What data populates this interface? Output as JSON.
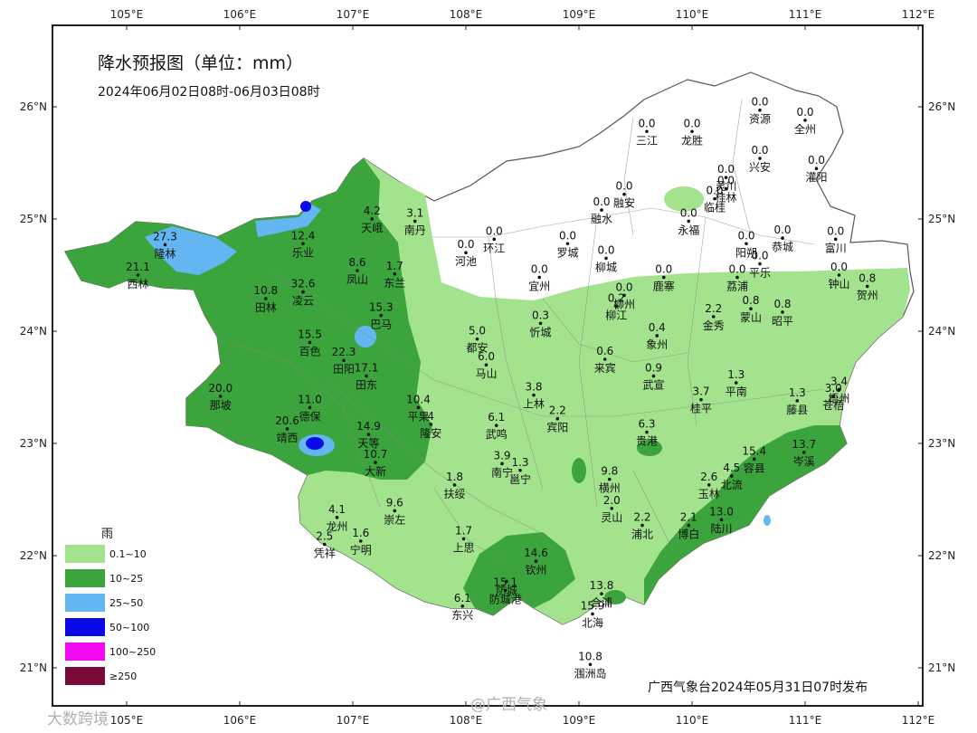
{
  "map": {
    "title": "降水预报图（单位：mm）",
    "subtitle": "2024年06月02日08时-06月03日08时",
    "footer": "广西气象台2024年05月31日07时发布",
    "watermarks": [
      "大数跨境",
      "@广西气象"
    ],
    "lon_ticks": [
      "105°E",
      "106°E",
      "107°E",
      "108°E",
      "109°E",
      "110°E",
      "111°E",
      "112°E"
    ],
    "lat_ticks": [
      "26°N",
      "25°N",
      "24°N",
      "23°N",
      "22°N",
      "21°N"
    ],
    "legend": {
      "title": "雨",
      "items": [
        {
          "label": "0.1~10",
          "color": "#a3e38e"
        },
        {
          "label": "10~25",
          "color": "#3ca43c"
        },
        {
          "label": "25~50",
          "color": "#63b6f2"
        },
        {
          "label": "50~100",
          "color": "#0a0ae6"
        },
        {
          "label": "100~250",
          "color": "#f30cf3"
        },
        {
          "label": "≥250",
          "color": "#7a0a3a"
        }
      ]
    },
    "stations": [
      {
        "name": "资源",
        "value": "0.0",
        "lon": 110.6,
        "lat": 25.97
      },
      {
        "name": "全州",
        "value": "0.0",
        "lon": 111.0,
        "lat": 25.88
      },
      {
        "name": "三江",
        "value": "0.0",
        "lon": 109.6,
        "lat": 25.78
      },
      {
        "name": "龙胜",
        "value": "0.0",
        "lon": 110.0,
        "lat": 25.78
      },
      {
        "name": "兴安",
        "value": "0.0",
        "lon": 110.6,
        "lat": 25.54
      },
      {
        "name": "灌阳",
        "value": "0.0",
        "lon": 111.1,
        "lat": 25.45
      },
      {
        "name": "灵川",
        "value": "0.0",
        "lon": 110.3,
        "lat": 25.37
      },
      {
        "name": "桂林",
        "value": "0.0",
        "lon": 110.3,
        "lat": 25.27
      },
      {
        "name": "临桂",
        "value": "0.0",
        "lon": 110.2,
        "lat": 25.18
      },
      {
        "name": "融安",
        "value": "0.0",
        "lon": 109.4,
        "lat": 25.22
      },
      {
        "name": "融水",
        "value": "0.0",
        "lon": 109.2,
        "lat": 25.08
      },
      {
        "name": "永福",
        "value": "0.0",
        "lon": 109.97,
        "lat": 24.98
      },
      {
        "name": "环江",
        "value": "0.0",
        "lon": 108.25,
        "lat": 24.82
      },
      {
        "name": "河池",
        "value": "0.0",
        "lon": 108.0,
        "lat": 24.7
      },
      {
        "name": "罗城",
        "value": "0.0",
        "lon": 108.9,
        "lat": 24.78
      },
      {
        "name": "柳城",
        "value": "0.0",
        "lon": 109.24,
        "lat": 24.65
      },
      {
        "name": "阳朔",
        "value": "0.0",
        "lon": 110.48,
        "lat": 24.78
      },
      {
        "name": "恭城",
        "value": "0.0",
        "lon": 110.8,
        "lat": 24.83
      },
      {
        "name": "富川",
        "value": "0.0",
        "lon": 111.27,
        "lat": 24.82
      },
      {
        "name": "宜州",
        "value": "0.0",
        "lon": 108.65,
        "lat": 24.48
      },
      {
        "name": "鹿寨",
        "value": "0.0",
        "lon": 109.75,
        "lat": 24.48
      },
      {
        "name": "平乐",
        "value": "0.0",
        "lon": 110.6,
        "lat": 24.6
      },
      {
        "name": "钟山",
        "value": "0.0",
        "lon": 111.3,
        "lat": 24.5
      },
      {
        "name": "荔浦",
        "value": "0.0",
        "lon": 110.4,
        "lat": 24.48
      },
      {
        "name": "柳州",
        "value": "0.0",
        "lon": 109.4,
        "lat": 24.32
      },
      {
        "name": "柳江",
        "value": "0.2",
        "lon": 109.33,
        "lat": 24.22
      },
      {
        "name": "贺州",
        "value": "0.8",
        "lon": 111.55,
        "lat": 24.4
      },
      {
        "name": "蒙山",
        "value": "0.8",
        "lon": 110.52,
        "lat": 24.2
      },
      {
        "name": "昭平",
        "value": "0.8",
        "lon": 110.8,
        "lat": 24.17
      },
      {
        "name": "金秀",
        "value": "2.2",
        "lon": 110.19,
        "lat": 24.13
      },
      {
        "name": "忻城",
        "value": "0.3",
        "lon": 108.66,
        "lat": 24.07
      },
      {
        "name": "象州",
        "value": "0.4",
        "lon": 109.69,
        "lat": 23.96
      },
      {
        "name": "都安",
        "value": "5.0",
        "lon": 108.1,
        "lat": 23.93
      },
      {
        "name": "马山",
        "value": "6.0",
        "lon": 108.18,
        "lat": 23.7
      },
      {
        "name": "来宾",
        "value": "0.6",
        "lon": 109.23,
        "lat": 23.75
      },
      {
        "name": "武宣",
        "value": "0.9",
        "lon": 109.66,
        "lat": 23.6
      },
      {
        "name": "平南",
        "value": "1.3",
        "lon": 110.39,
        "lat": 23.54
      },
      {
        "name": "桂平",
        "value": "3.7",
        "lon": 110.08,
        "lat": 23.39
      },
      {
        "name": "藤县",
        "value": "1.3",
        "lon": 110.93,
        "lat": 23.38
      },
      {
        "name": "梧州",
        "value": "3.4",
        "lon": 111.3,
        "lat": 23.48
      },
      {
        "name": "苍梧",
        "value": "3.0",
        "lon": 111.25,
        "lat": 23.42
      },
      {
        "name": "上林",
        "value": "3.8",
        "lon": 108.6,
        "lat": 23.43
      },
      {
        "name": "宾阳",
        "value": "2.2",
        "lon": 108.81,
        "lat": 23.22
      },
      {
        "name": "武鸣",
        "value": "6.1",
        "lon": 108.27,
        "lat": 23.16
      },
      {
        "name": "贵港",
        "value": "6.3",
        "lon": 109.6,
        "lat": 23.1
      },
      {
        "name": "岑溪",
        "value": "13.7",
        "lon": 110.99,
        "lat": 22.92
      },
      {
        "name": "容县",
        "value": "15.4",
        "lon": 110.55,
        "lat": 22.86
      },
      {
        "name": "北流",
        "value": "4.5",
        "lon": 110.35,
        "lat": 22.71
      },
      {
        "name": "玉林",
        "value": "2.6",
        "lon": 110.15,
        "lat": 22.63
      },
      {
        "name": "横州",
        "value": "9.8",
        "lon": 109.27,
        "lat": 22.68
      },
      {
        "name": "邕宁",
        "value": "1.3",
        "lon": 108.48,
        "lat": 22.76
      },
      {
        "name": "南宁",
        "value": "3.9",
        "lon": 108.32,
        "lat": 22.82
      },
      {
        "name": "灵山",
        "value": "2.0",
        "lon": 109.29,
        "lat": 22.42
      },
      {
        "name": "浦北",
        "value": "2.2",
        "lon": 109.56,
        "lat": 22.27
      },
      {
        "name": "博白",
        "value": "2.1",
        "lon": 109.97,
        "lat": 22.27
      },
      {
        "name": "陆川",
        "value": "13.0",
        "lon": 110.26,
        "lat": 22.32
      },
      {
        "name": "扶绥",
        "value": "1.8",
        "lon": 107.9,
        "lat": 22.63
      },
      {
        "name": "上思",
        "value": "1.7",
        "lon": 107.98,
        "lat": 22.15
      },
      {
        "name": "钦州",
        "value": "14.6",
        "lon": 108.62,
        "lat": 21.95
      },
      {
        "name": "防城港",
        "value": "15.1",
        "lon": 108.35,
        "lat": 21.69
      },
      {
        "name": "防城",
        "value": "",
        "lon": 108.36,
        "lat": 21.77
      },
      {
        "name": "东兴",
        "value": "6.1",
        "lon": 107.97,
        "lat": 21.55
      },
      {
        "name": "合浦",
        "value": "13.8",
        "lon": 109.2,
        "lat": 21.66
      },
      {
        "name": "北海",
        "value": "15.9",
        "lon": 109.12,
        "lat": 21.48
      },
      {
        "name": "涠洲岛",
        "value": "10.8",
        "lon": 109.1,
        "lat": 21.03
      },
      {
        "name": "隆林",
        "value": "27.3",
        "lon": 105.34,
        "lat": 24.77
      },
      {
        "name": "西林",
        "value": "21.1",
        "lon": 105.1,
        "lat": 24.5
      },
      {
        "name": "乐业",
        "value": "12.4",
        "lon": 106.56,
        "lat": 24.78
      },
      {
        "name": "天峨",
        "value": "4.2",
        "lon": 107.17,
        "lat": 25.0
      },
      {
        "name": "南丹",
        "value": "3.1",
        "lon": 107.55,
        "lat": 24.98
      },
      {
        "name": "凤山",
        "value": "8.6",
        "lon": 107.04,
        "lat": 24.54
      },
      {
        "name": "东兰",
        "value": "1.7",
        "lon": 107.37,
        "lat": 24.51
      },
      {
        "name": "凌云",
        "value": "32.6",
        "lon": 106.56,
        "lat": 24.35
      },
      {
        "name": "田林",
        "value": "10.8",
        "lon": 106.23,
        "lat": 24.29
      },
      {
        "name": "巴马",
        "value": "15.3",
        "lon": 107.25,
        "lat": 24.14
      },
      {
        "name": "百色",
        "value": "15.5",
        "lon": 106.62,
        "lat": 23.9
      },
      {
        "name": "田阳",
        "value": "22.3",
        "lon": 106.92,
        "lat": 23.74
      },
      {
        "name": "田东",
        "value": "17.1",
        "lon": 107.12,
        "lat": 23.6
      },
      {
        "name": "那坡",
        "value": "20.0",
        "lon": 105.83,
        "lat": 23.42
      },
      {
        "name": "德保",
        "value": "11.0",
        "lon": 106.62,
        "lat": 23.32
      },
      {
        "name": "平果",
        "value": "10.4",
        "lon": 107.58,
        "lat": 23.32
      },
      {
        "name": "隆安",
        "value": "4",
        "lon": 107.69,
        "lat": 23.17
      },
      {
        "name": "靖西",
        "value": "20.6",
        "lon": 106.42,
        "lat": 23.13
      },
      {
        "name": "天等",
        "value": "14.9",
        "lon": 107.14,
        "lat": 23.08
      },
      {
        "name": "大新",
        "value": "10.7",
        "lon": 107.2,
        "lat": 22.83
      },
      {
        "name": "崇左",
        "value": "9.6",
        "lon": 107.37,
        "lat": 22.4
      },
      {
        "name": "龙州",
        "value": "4.1",
        "lon": 106.86,
        "lat": 22.34
      },
      {
        "name": "宁明",
        "value": "1.6",
        "lon": 107.07,
        "lat": 22.13
      },
      {
        "name": "凭祥",
        "value": "2.5",
        "lon": 106.75,
        "lat": 22.1
      }
    ]
  }
}
